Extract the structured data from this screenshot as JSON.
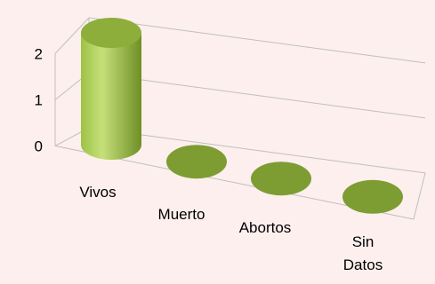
{
  "chart_data": {
    "type": "bar",
    "style": "3d-cylinder",
    "categories": [
      "Vivos",
      "Muerto",
      "Abortos",
      "Sin Datos"
    ],
    "category_label_lines": [
      [
        "Vivos"
      ],
      [
        "Muerto"
      ],
      [
        "Abortos"
      ],
      [
        "Sin",
        "Datos"
      ]
    ],
    "values": [
      2,
      0,
      0,
      0
    ],
    "ylim": [
      0,
      2
    ],
    "yticks": [
      "0",
      "1",
      "2"
    ],
    "grid": true,
    "legend": "none",
    "title": "",
    "xlabel": "",
    "ylabel": ""
  },
  "colors": {
    "background": "#fcefee",
    "bar_light": "#c6e07a",
    "bar_mid": "#9dc245",
    "bar_dark": "#6f8f26",
    "bar_top": "#8dae3a",
    "floor_cap": "#7d9d32",
    "grid_line": "#bfbfbf"
  }
}
